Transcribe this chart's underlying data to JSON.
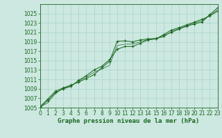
{
  "xlabel": "Graphe pression niveau de la mer (hPa)",
  "ylabel": "",
  "bg_color": "#cce8e0",
  "grid_color": "#aad4c8",
  "line_color": "#1a6620",
  "marker_color": "#1a6620",
  "ylim": [
    1005,
    1027
  ],
  "xlim": [
    0,
    23
  ],
  "yticks": [
    1005,
    1007,
    1009,
    1011,
    1013,
    1015,
    1017,
    1019,
    1021,
    1023,
    1025
  ],
  "xticks": [
    0,
    1,
    2,
    3,
    4,
    5,
    6,
    7,
    8,
    9,
    10,
    11,
    12,
    13,
    14,
    15,
    16,
    17,
    18,
    19,
    20,
    21,
    22,
    23
  ],
  "series1_x": [
    0,
    1,
    2,
    3,
    4,
    5,
    6,
    7,
    8,
    9,
    10,
    11,
    12,
    13,
    14,
    15,
    16,
    17,
    18,
    19,
    20,
    21,
    22,
    23
  ],
  "series1_y": [
    1005.2,
    1006.8,
    1008.5,
    1009.2,
    1009.8,
    1010.4,
    1011.2,
    1012.0,
    1013.5,
    1014.8,
    1019.1,
    1019.2,
    1019.0,
    1019.4,
    1019.6,
    1019.7,
    1020.3,
    1021.0,
    1021.7,
    1022.3,
    1022.8,
    1023.2,
    1024.8,
    1026.2
  ],
  "series2_x": [
    0,
    1,
    2,
    3,
    4,
    5,
    6,
    7,
    8,
    9,
    10,
    11,
    12,
    13,
    14,
    15,
    16,
    17,
    18,
    19,
    20,
    21,
    22,
    23
  ],
  "series2_y": [
    1005.0,
    1006.5,
    1008.2,
    1009.0,
    1009.5,
    1010.8,
    1011.8,
    1013.0,
    1013.8,
    1015.2,
    1017.4,
    1018.0,
    1018.0,
    1018.7,
    1019.4,
    1019.6,
    1020.5,
    1021.5,
    1022.0,
    1022.6,
    1023.2,
    1023.8,
    1024.5,
    1025.5
  ],
  "series3_x": [
    0,
    1,
    2,
    3,
    4,
    5,
    6,
    7,
    8,
    9,
    10,
    11,
    12,
    13,
    14,
    15,
    16,
    17,
    18,
    19,
    20,
    21,
    22,
    23
  ],
  "series3_y": [
    1005.1,
    1006.0,
    1008.0,
    1009.1,
    1009.6,
    1010.6,
    1011.5,
    1012.5,
    1013.2,
    1014.0,
    1018.2,
    1018.5,
    1018.5,
    1019.0,
    1019.5,
    1019.7,
    1020.0,
    1021.2,
    1021.8,
    1022.4,
    1023.0,
    1023.5,
    1024.6,
    1025.8
  ],
  "tick_fontsize": 5.5,
  "label_fontsize": 6.5
}
